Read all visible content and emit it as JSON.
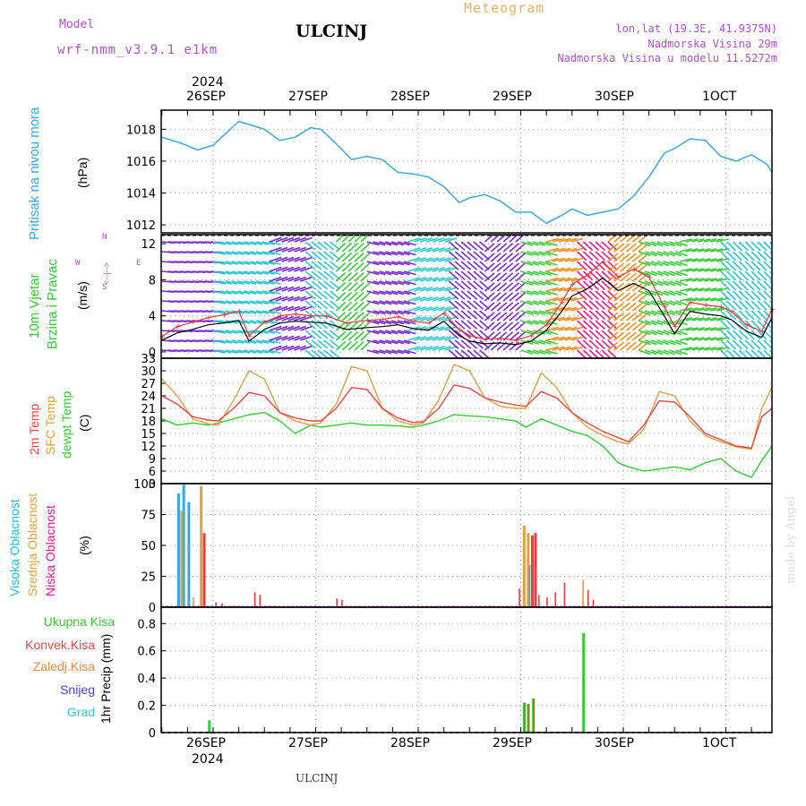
{
  "header": {
    "model_label": "Model",
    "model_name": "wrf-nmm_v3.9.1 e1km",
    "station": "ULCINJ",
    "meteogram": "Meteogram",
    "coords": "lon,lat (19.3E, 41.9375N)",
    "elevation": "Nadmorska Visina 29m",
    "model_elevation": "Nadmorska Visina u modelu 11.5272m",
    "year": "2024",
    "footer_station": "ULCINJ",
    "credit": "made by Angel"
  },
  "dates": [
    "26SEP",
    "27SEP",
    "28SEP",
    "29SEP",
    "30SEP",
    "1OCT"
  ],
  "colors": {
    "pressure": "#3aa8e6",
    "wind_cyan": "#2ec8d2",
    "wind_green": "#3ccc3c",
    "wind_purple": "#7a2ad0",
    "wind_orange": "#f09020",
    "wind_magenta": "#ee1a8a",
    "wind_speed": "#000000",
    "wind_gust": "#ee3333",
    "temp2m": "#ee4444",
    "sfc": "#e0a040",
    "dew": "#33cc33",
    "high_cloud": "#33a8e8",
    "mid_cloud": "#e0a040",
    "low_cloud": "#ee3a3a",
    "precip_total": "#33cc33",
    "precip_conv": "#ee4444",
    "precip_frozen": "#f0883a",
    "snow": "#4444ee",
    "graupel": "#33cccc"
  },
  "labels": {
    "pressure": [
      "Pritisak na nivou mora",
      "(hPa)"
    ],
    "wind": [
      "10m Vjetar",
      "Brzina i Pravac",
      "(m/s)"
    ],
    "compass": [
      "N",
      "<--|-->",
      "S",
      "W",
      "E"
    ],
    "temp": [
      "2m Temp",
      "SFC Temp",
      "dewpt Temp",
      "(C)"
    ],
    "cloud": [
      "Visoka Oblacnost",
      "Srednja Oblacnost",
      "Niska Oblacnost",
      "(%)"
    ],
    "precip_legend": [
      "Ukupna Kisa",
      "Konvek.Kisa",
      "Zaledj.Kisa",
      "Snijeg",
      "Grad"
    ],
    "precip_axis": "1hr Precip (mm)"
  },
  "chart_data": [
    {
      "type": "line",
      "panel": "pressure",
      "ylabel": "(hPa)",
      "ylim": [
        1011.5,
        1019.2
      ],
      "yticks": [
        "1012",
        "1014",
        "1016",
        "1018"
      ],
      "x_days": [
        0.0,
        0.2,
        0.35,
        0.5,
        0.75,
        1.0,
        1.15,
        1.3,
        1.45,
        1.55,
        1.7,
        1.85,
        2.0,
        2.15,
        2.3,
        2.45,
        2.6,
        2.75,
        2.9,
        3.0,
        3.15,
        3.3,
        3.45,
        3.6,
        3.75,
        3.9,
        4.0,
        4.15,
        4.3,
        4.45,
        4.6,
        4.75,
        4.9,
        5.0,
        5.15,
        5.3,
        5.45,
        5.6,
        5.75,
        5.9,
        5.95
      ],
      "series": [
        {
          "values": [
            1017.5,
            1017.1,
            1016.7,
            1017.0,
            1018.5,
            1018.0,
            1017.3,
            1017.5,
            1018.1,
            1018.0,
            1017.1,
            1016.1,
            1016.3,
            1016.1,
            1015.3,
            1015.2,
            1015.0,
            1014.4,
            1013.4,
            1013.7,
            1013.9,
            1013.5,
            1012.8,
            1012.8,
            1012.1,
            1012.6,
            1013.0,
            1012.6,
            1012.8,
            1013.0,
            1013.8,
            1015.0,
            1016.5,
            1016.8,
            1017.4,
            1017.3,
            1016.3,
            1016.0,
            1016.4,
            1015.8,
            1015.3
          ]
        }
      ]
    },
    {
      "type": "line",
      "panel": "wind",
      "ylabel": "(m/s)",
      "ylim": [
        -0.7,
        13
      ],
      "yticks": [
        "0",
        "4",
        "8",
        "12"
      ],
      "x_days": [
        0.0,
        0.15,
        0.3,
        0.45,
        0.6,
        0.75,
        0.85,
        1.0,
        1.15,
        1.3,
        1.45,
        1.6,
        1.8,
        2.0,
        2.15,
        2.3,
        2.45,
        2.6,
        2.75,
        2.9,
        3.0,
        3.15,
        3.3,
        3.45,
        3.6,
        3.75,
        3.9,
        4.0,
        4.15,
        4.3,
        4.45,
        4.6,
        4.75,
        4.9,
        5.0,
        5.15,
        5.3,
        5.45,
        5.55,
        5.7,
        5.85,
        5.95
      ],
      "series": [
        {
          "name": "speed",
          "values": [
            1.3,
            2.1,
            2.5,
            3.0,
            3.2,
            3.5,
            1.2,
            2.5,
            3.2,
            3.4,
            3.3,
            3.2,
            2.5,
            2.7,
            2.8,
            3.0,
            2.6,
            2.4,
            3.4,
            1.8,
            1.2,
            0.9,
            1.0,
            0.8,
            1.2,
            2.4,
            4.5,
            6.2,
            7.0,
            8.2,
            6.8,
            7.6,
            6.8,
            4.0,
            2.0,
            4.5,
            4.2,
            4.0,
            3.6,
            2.3,
            1.6,
            3.8
          ]
        },
        {
          "name": "gust",
          "values": [
            1.7,
            2.8,
            3.3,
            3.8,
            4.1,
            4.5,
            1.8,
            3.3,
            4.0,
            4.2,
            4.0,
            4.0,
            3.2,
            3.5,
            3.6,
            3.9,
            3.4,
            3.2,
            4.3,
            2.5,
            1.8,
            1.4,
            1.5,
            1.3,
            1.8,
            3.0,
            5.5,
            7.5,
            8.5,
            10.0,
            8.3,
            9.2,
            8.3,
            5.0,
            2.8,
            5.5,
            5.2,
            5.0,
            4.5,
            3.0,
            2.3,
            4.7
          ]
        }
      ]
    },
    {
      "type": "line",
      "panel": "temperature",
      "ylabel": "(C)",
      "ylim": [
        3,
        33
      ],
      "yticks": [
        "3",
        "6",
        "9",
        "12",
        "15",
        "18",
        "21",
        "24",
        "27",
        "30",
        "33"
      ],
      "x_days": [
        0.0,
        0.15,
        0.3,
        0.45,
        0.55,
        0.7,
        0.85,
        1.0,
        1.15,
        1.3,
        1.45,
        1.55,
        1.7,
        1.85,
        2.0,
        2.15,
        2.3,
        2.45,
        2.55,
        2.7,
        2.85,
        3.0,
        3.15,
        3.3,
        3.45,
        3.55,
        3.7,
        3.85,
        4.0,
        4.15,
        4.3,
        4.45,
        4.55,
        4.7,
        4.85,
        5.0,
        5.15,
        5.3,
        5.45,
        5.6,
        5.75,
        5.85,
        5.95
      ],
      "series": [
        {
          "name": "2m Temp",
          "values": [
            24,
            22,
            19,
            18.2,
            18,
            21,
            24.8,
            24,
            20,
            18.7,
            18,
            18,
            21,
            26,
            25.5,
            21,
            18.7,
            17.6,
            17.8,
            21,
            26.6,
            25.8,
            23.5,
            22.5,
            21.8,
            21.5,
            25,
            23.5,
            20,
            17.5,
            15.5,
            14,
            13,
            17,
            22.8,
            22.5,
            19,
            15,
            13.5,
            12,
            11.5,
            19,
            21
          ]
        },
        {
          "name": "SFC Temp",
          "values": [
            28,
            24,
            18.5,
            17.3,
            17,
            23,
            30,
            28,
            20,
            18,
            17,
            17.5,
            22,
            31,
            30,
            21,
            18,
            17,
            17.5,
            23,
            31.5,
            30,
            23.5,
            21.5,
            21,
            21,
            29.5,
            26,
            20,
            16.5,
            14.5,
            13,
            12.5,
            16,
            25,
            24,
            18,
            14.5,
            13,
            11.8,
            11.2,
            21,
            26
          ]
        },
        {
          "name": "dewpt Temp",
          "values": [
            18.5,
            17,
            17.5,
            17,
            17.5,
            18.5,
            19.5,
            20,
            18,
            15,
            17,
            16.5,
            17,
            17.5,
            17,
            17,
            16.8,
            16.5,
            17,
            18,
            19.5,
            19.2,
            19,
            18.5,
            18,
            16.5,
            18.5,
            17,
            15.5,
            14.5,
            12,
            8,
            7,
            6,
            6.5,
            7,
            6.3,
            8,
            9,
            6,
            4.5,
            8.5,
            12
          ]
        }
      ]
    },
    {
      "type": "bar",
      "panel": "cloud_cover",
      "ylabel": "(%)",
      "ylim": [
        0,
        100
      ],
      "yticks": [
        "0",
        "25",
        "50",
        "75",
        "100"
      ],
      "bars": [
        {
          "x": -0.35,
          "series": "Visoka Oblacnost",
          "value": 92
        },
        {
          "x": -0.3,
          "series": "Visoka Oblacnost",
          "value": 99
        },
        {
          "x": -0.25,
          "series": "Visoka Oblacnost",
          "value": 85
        },
        {
          "x": -0.32,
          "series": "Srednja Oblacnost",
          "value": 78
        },
        {
          "x": -0.2,
          "series": "Srednja Oblacnost",
          "value": 8
        },
        {
          "x": -0.13,
          "series": "Srednja Oblacnost",
          "value": 98
        },
        {
          "x": -0.1,
          "series": "Niska Oblacnost",
          "value": 60
        },
        {
          "x": 0.02,
          "series": "Niska Oblacnost",
          "value": 4
        },
        {
          "x": 0.08,
          "series": "Niska Oblacnost",
          "value": 3
        },
        {
          "x": 0.4,
          "series": "Niska Oblacnost",
          "value": 12
        },
        {
          "x": 0.45,
          "series": "Niska Oblacnost",
          "value": 10
        },
        {
          "x": 1.2,
          "series": "Niska Oblacnost",
          "value": 7
        },
        {
          "x": 1.25,
          "series": "Niska Oblacnost",
          "value": 6
        },
        {
          "x": 2.98,
          "series": "Niska Oblacnost",
          "value": 15
        },
        {
          "x": 3.02,
          "series": "Srednja Oblacnost",
          "value": 66
        },
        {
          "x": 3.06,
          "series": "Srednja Oblacnost",
          "value": 60
        },
        {
          "x": 3.08,
          "series": "Visoka Oblacnost",
          "value": 34
        },
        {
          "x": 3.1,
          "series": "Niska Oblacnost",
          "value": 58
        },
        {
          "x": 3.13,
          "series": "Niska Oblacnost",
          "value": 60
        },
        {
          "x": 3.17,
          "series": "Niska Oblacnost",
          "value": 10
        },
        {
          "x": 3.25,
          "series": "Niska Oblacnost",
          "value": 8
        },
        {
          "x": 3.33,
          "series": "Niska Oblacnost",
          "value": 12
        },
        {
          "x": 3.42,
          "series": "Niska Oblacnost",
          "value": 20
        },
        {
          "x": 3.6,
          "series": "Srednja Oblacnost",
          "value": 22
        },
        {
          "x": 3.65,
          "series": "Niska Oblacnost",
          "value": 14
        },
        {
          "x": 3.7,
          "series": "Niska Oblacnost",
          "value": 6
        }
      ]
    },
    {
      "type": "bar",
      "panel": "precipitation",
      "ylabel": "1hr Precip (mm)",
      "ylim": [
        0,
        0.92
      ],
      "yticks": [
        "0",
        "0.2",
        "0.4",
        "0.6",
        "0.8"
      ],
      "bars": [
        {
          "x": -0.05,
          "series": "Ukupna Kisa",
          "value": 0.09
        },
        {
          "x": 3.02,
          "series": "Ukupna Kisa",
          "value": 0.22
        },
        {
          "x": 3.06,
          "series": "Ukupna Kisa",
          "value": 0.21
        },
        {
          "x": 3.11,
          "series": "Ukupna Kisa",
          "value": 0.25
        },
        {
          "x": 3.6,
          "series": "Ukupna Kisa",
          "value": 0.73
        }
      ]
    }
  ]
}
